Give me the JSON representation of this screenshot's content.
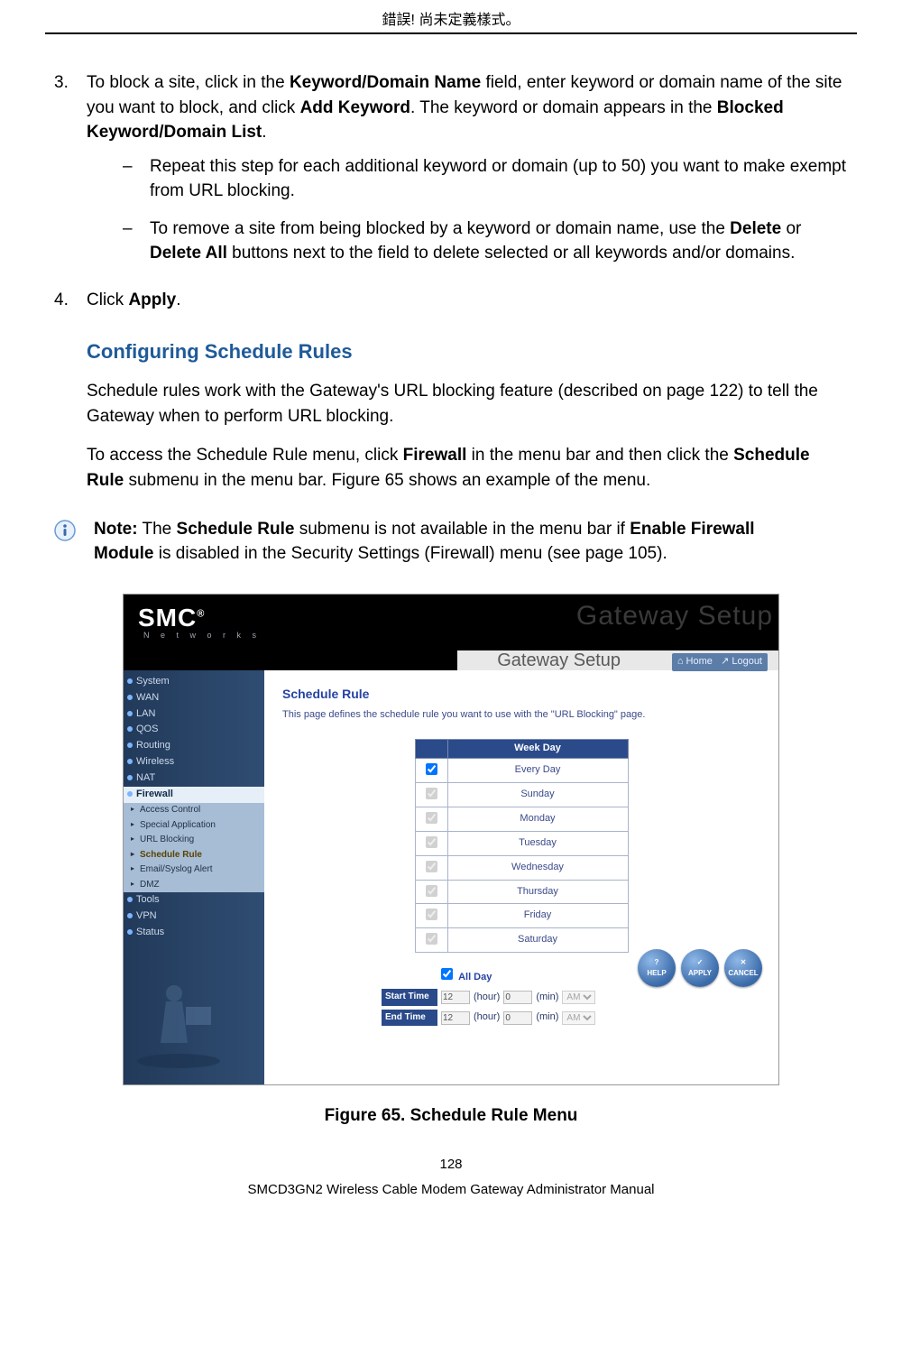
{
  "header_error": "錯誤! 尚未定義樣式。",
  "steps": {
    "s3": {
      "num": "3.",
      "text_parts": [
        "To block a site, click in the ",
        "Keyword/Domain Name",
        " field, enter keyword or domain name of the site you want to block, and click ",
        "Add Keyword",
        ". The keyword or domain appears in the ",
        "Blocked Keyword/Domain List",
        "."
      ],
      "subs": [
        {
          "dash": "–",
          "text_parts": [
            "Repeat this step for each additional keyword or domain (up to 50) you want to make exempt from URL blocking."
          ]
        },
        {
          "dash": "–",
          "text_parts": [
            "To remove a site from being blocked by a keyword or domain name, use the ",
            "Delete",
            " or ",
            "Delete All",
            " buttons next to the field to delete selected or all keywords and/or domains."
          ]
        }
      ]
    },
    "s4": {
      "num": "4.",
      "text_parts": [
        "Click ",
        "Apply",
        "."
      ]
    }
  },
  "section_heading": "Configuring Schedule Rules",
  "section_p1": "Schedule rules work with the Gateway's URL blocking feature (described on page 122) to tell the Gateway when to perform URL blocking.",
  "section_p2_parts": [
    "To access the Schedule Rule menu, click ",
    "Firewall",
    " in the menu bar and then click the ",
    "Schedule Rule",
    " submenu in the menu bar. Figure 65 shows an example of the menu."
  ],
  "note_parts": [
    "Note:",
    " The ",
    "Schedule Rule",
    " submenu is not available in the menu bar if ",
    "Enable Firewall Module",
    " is disabled in the Security Settings (Firewall) menu (see page 105)."
  ],
  "screenshot": {
    "logo": "SMC",
    "logo_reg": "®",
    "networks": "N e t w o r k s",
    "ghost": "Gateway Setup",
    "gateway_setup": "Gateway Setup",
    "nav_home": "Home",
    "nav_logout": "Logout",
    "menu_top": [
      "System",
      "WAN",
      "LAN",
      "QOS",
      "Routing",
      "Wireless",
      "NAT",
      "Firewall",
      "Tools",
      "VPN",
      "Status"
    ],
    "menu_firewall_idx": 7,
    "submenu": [
      "Access Control",
      "Special Application",
      "URL Blocking",
      "Schedule Rule",
      "Email/Syslog Alert",
      "DMZ"
    ],
    "submenu_active_idx": 3,
    "panel_title": "Schedule Rule",
    "panel_desc": "This page defines the schedule rule you want to use with the \"URL Blocking\" page.",
    "th_blank": " ",
    "th_weekday": "Week Day",
    "days": [
      "Every Day",
      "Sunday",
      "Monday",
      "Tuesday",
      "Wednesday",
      "Thursday",
      "Friday",
      "Saturday"
    ],
    "allday_label": "All Day",
    "start_label": "Start Time",
    "end_label": "End Time",
    "hour_val": "12",
    "hour_lbl": "(hour)",
    "min_val": "0",
    "min_lbl": "(min)",
    "ampm": "AM",
    "btn_help": "HELP",
    "btn_apply": "APPLY",
    "btn_cancel": "CANCEL",
    "colors": {
      "header_bg": "#000000",
      "sidebar_bg": "#2e4a6e",
      "accent_blue": "#2a4a8a",
      "link_blue": "#2643a3"
    }
  },
  "figure_caption": "Figure 65. Schedule Rule Menu",
  "page_number": "128",
  "footer_text": "SMCD3GN2 Wireless Cable Modem Gateway Administrator Manual"
}
